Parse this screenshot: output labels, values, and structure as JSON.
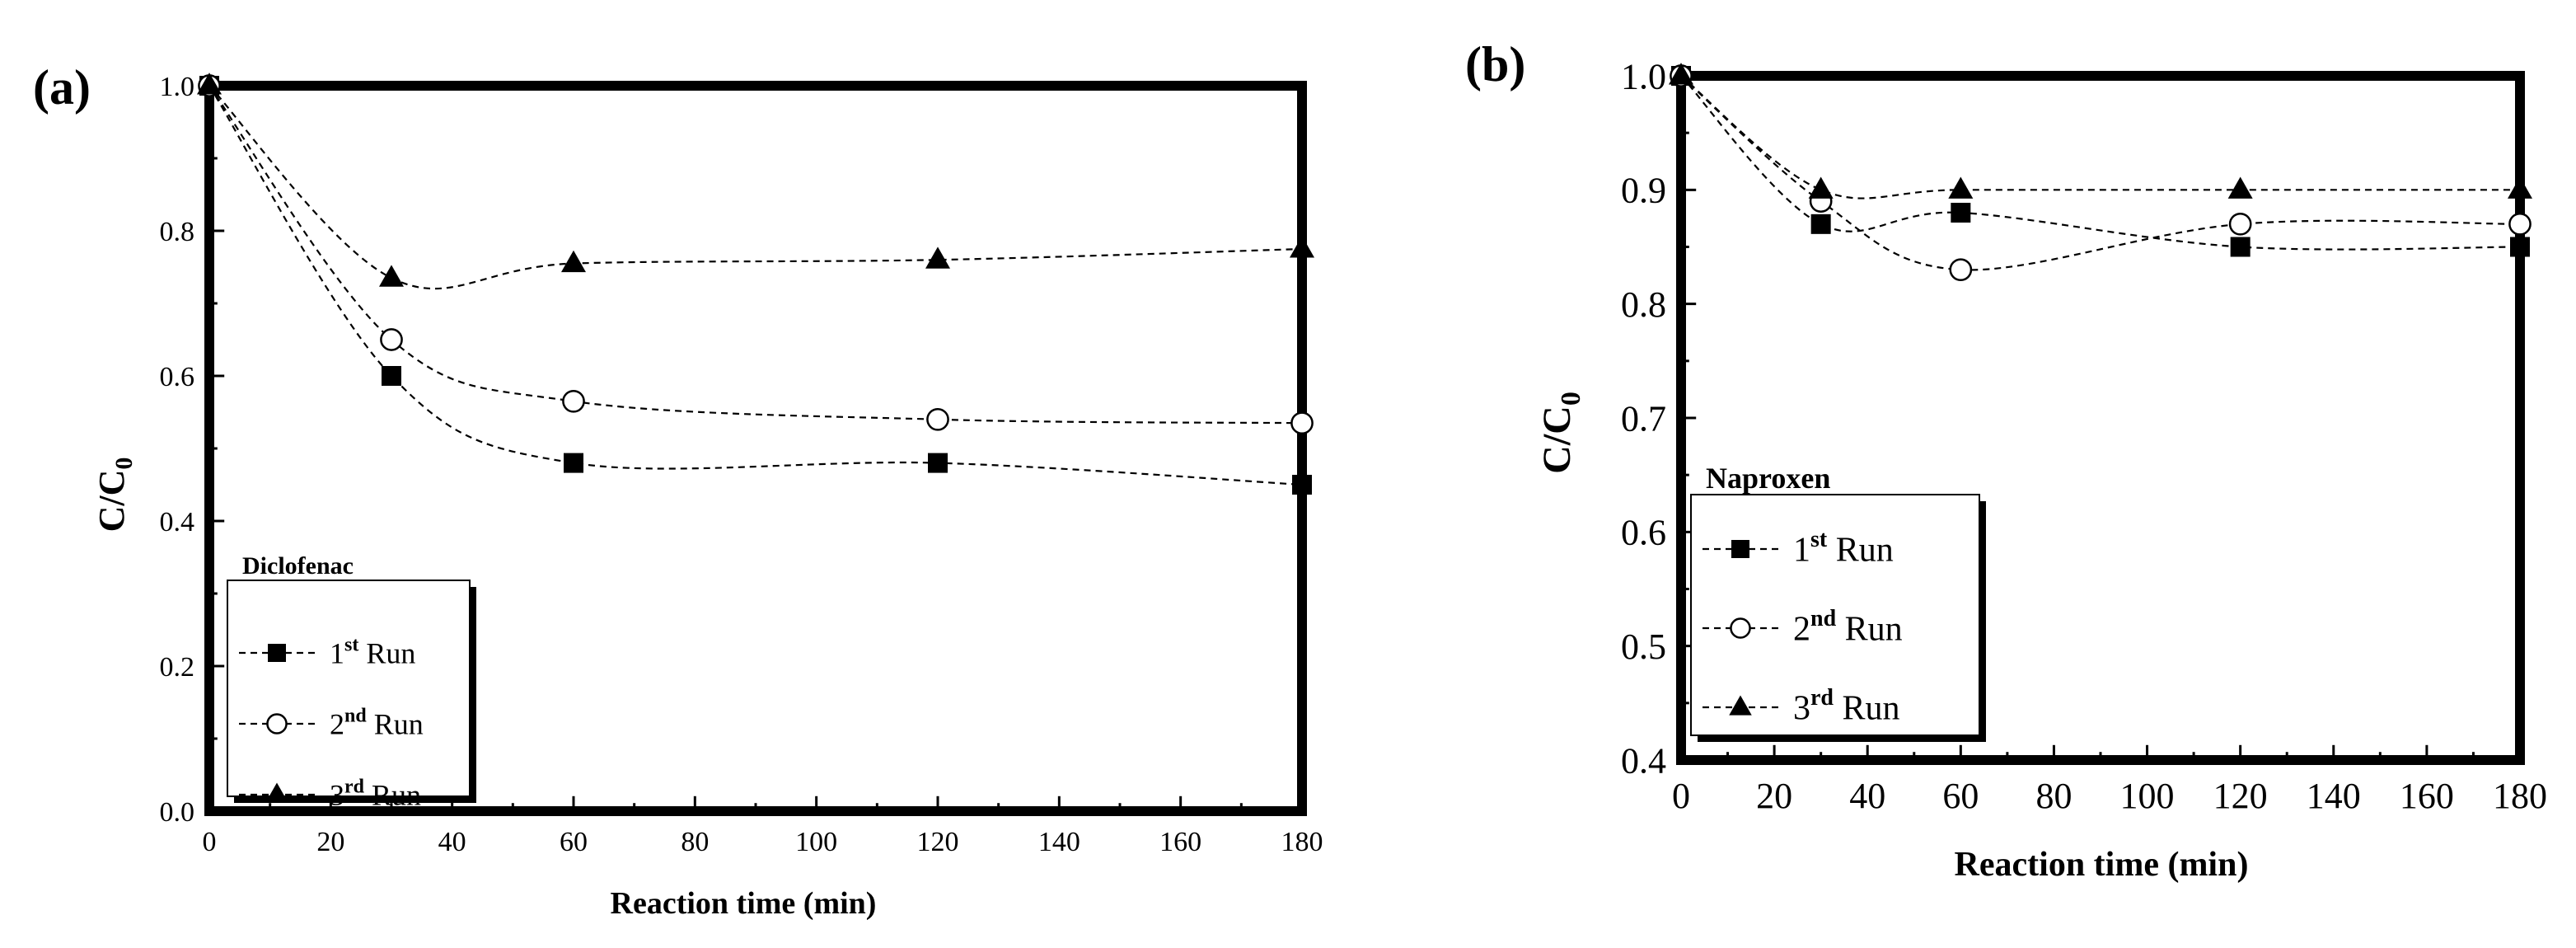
{
  "chart_data": [
    {
      "type": "scatter",
      "panel_label": "(a)",
      "title": "",
      "xlabel": "Reaction time (min)",
      "ylabel": "C/C0",
      "ylabel_main": "C/C",
      "ylabel_sub": "0",
      "xlim": [
        0,
        180
      ],
      "ylim": [
        0,
        1.0
      ],
      "xticks": [
        0,
        20,
        40,
        60,
        80,
        100,
        120,
        140,
        160,
        180
      ],
      "yticks": [
        0.0,
        0.2,
        0.4,
        0.6,
        0.8,
        1.0
      ],
      "ytick_labels": [
        "0.0",
        "0.2",
        "0.4",
        "0.6",
        "0.8",
        "1.0"
      ],
      "grid": false,
      "legend_title": "Diclofenac",
      "legend_position": "bottom-left",
      "x": [
        0,
        30,
        60,
        120,
        180
      ],
      "series": [
        {
          "name": "1st Run",
          "ordinal": "1",
          "suffix": "st",
          "word": "Run",
          "marker": "square",
          "values": [
            1.0,
            0.6,
            0.48,
            0.48,
            0.45
          ]
        },
        {
          "name": "2nd Run",
          "ordinal": "2",
          "suffix": "nd",
          "word": "Run",
          "marker": "circle",
          "values": [
            1.0,
            0.65,
            0.565,
            0.54,
            0.535
          ]
        },
        {
          "name": "3rd Run",
          "ordinal": "3",
          "suffix": "rd",
          "word": "Run",
          "marker": "triangle",
          "values": [
            1.0,
            0.735,
            0.755,
            0.76,
            0.775
          ]
        }
      ]
    },
    {
      "type": "scatter",
      "panel_label": "(b)",
      "title": "",
      "xlabel": "Reaction time (min)",
      "ylabel": "C/C0",
      "ylabel_main": "C/C",
      "ylabel_sub": "0",
      "xlim": [
        0,
        180
      ],
      "ylim": [
        0.4,
        1.0
      ],
      "xticks": [
        0,
        20,
        40,
        60,
        80,
        100,
        120,
        140,
        160,
        180
      ],
      "yticks": [
        0.4,
        0.5,
        0.6,
        0.7,
        0.8,
        0.9,
        1.0
      ],
      "ytick_labels": [
        "0.4",
        "0.5",
        "0.6",
        "0.7",
        "0.8",
        "0.9",
        "1.0"
      ],
      "grid": false,
      "legend_title": "Naproxen",
      "legend_position": "bottom-left",
      "x": [
        0,
        30,
        60,
        120,
        180
      ],
      "series": [
        {
          "name": "1st Run",
          "ordinal": "1",
          "suffix": "st",
          "word": "Run",
          "marker": "square",
          "values": [
            1.0,
            0.87,
            0.88,
            0.85,
            0.85
          ]
        },
        {
          "name": "2nd Run",
          "ordinal": "2",
          "suffix": "nd",
          "word": "Run",
          "marker": "circle",
          "values": [
            1.0,
            0.89,
            0.83,
            0.87,
            0.87
          ]
        },
        {
          "name": "3rd Run",
          "ordinal": "3",
          "suffix": "rd",
          "word": "Run",
          "marker": "triangle",
          "values": [
            1.0,
            0.9,
            0.9,
            0.9,
            0.9
          ]
        }
      ]
    }
  ]
}
